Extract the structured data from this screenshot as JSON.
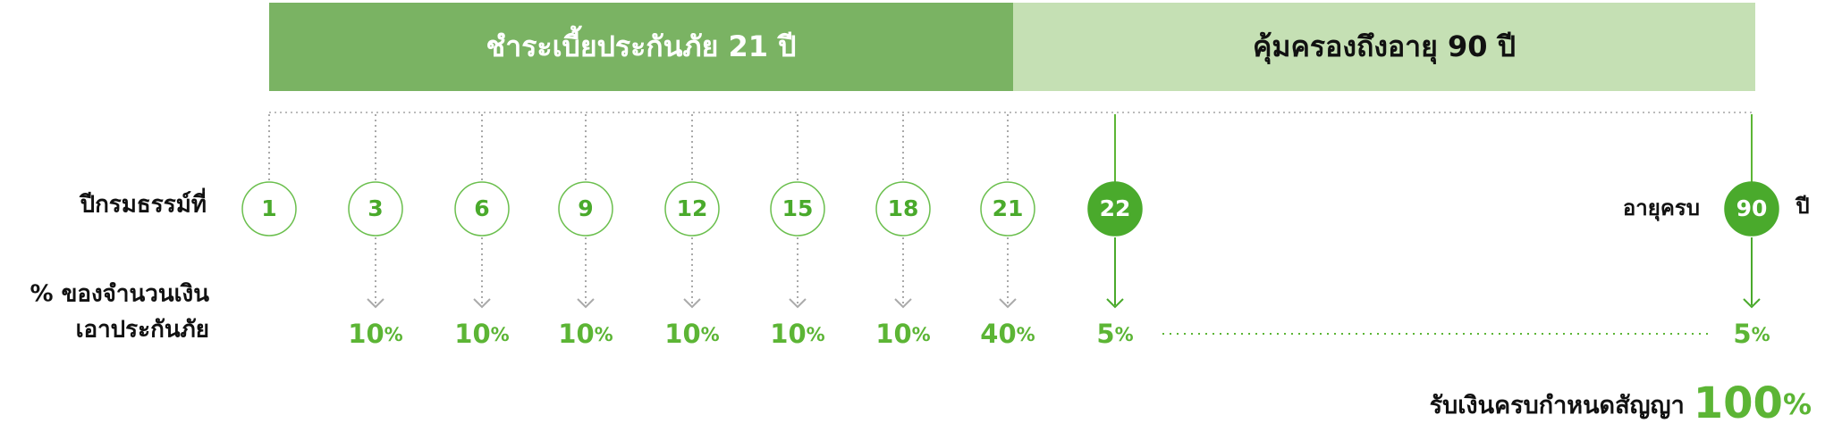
{
  "header": {
    "payment_period": "ชำระเบี้ยประกันภัย 21 ปี",
    "coverage": "คุ้มครองถึงอายุ 90 ปี"
  },
  "row_labels": {
    "policy_year": "ปีกรมธรรม์ที่",
    "payout_line1": "% ของจำนวนเงิน",
    "payout_line2": "เอาประกันภัย"
  },
  "percent_sign": "%",
  "milestones": [
    {
      "year": "1"
    },
    {
      "year": "3",
      "payout": "10"
    },
    {
      "year": "6",
      "payout": "10"
    },
    {
      "year": "9",
      "payout": "10"
    },
    {
      "year": "12",
      "payout": "10"
    },
    {
      "year": "15",
      "payout": "10"
    },
    {
      "year": "18",
      "payout": "10"
    },
    {
      "year": "21",
      "payout": "40"
    },
    {
      "year": "22",
      "payout": "5"
    }
  ],
  "maturity": {
    "prefix": "อายุครบ",
    "age": "90",
    "suffix": "ปี",
    "payout": "5"
  },
  "final": {
    "label": "รับเงินครบกำหนดสัญญา",
    "payout": "100"
  }
}
